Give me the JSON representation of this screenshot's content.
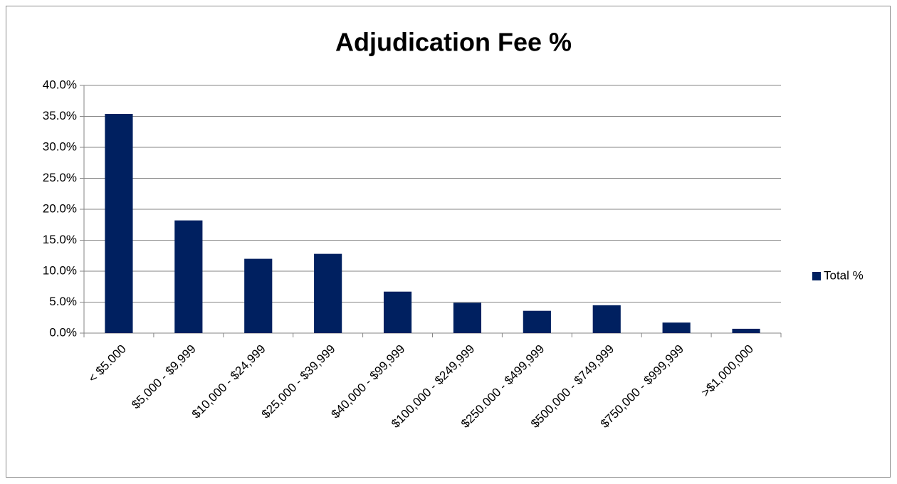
{
  "chart_data": {
    "type": "bar",
    "title": "Adjudication Fee %",
    "categories": [
      "< $5.000",
      "$5,000 - $9,999",
      "$10,000 - $24,999",
      "$25,000 - $39,999",
      "$40,000 - $99,999",
      "$100,000 - $249,999",
      "$250.000 - $499,999",
      "$500,000 - $749,999",
      "$750,000 - $999,999",
      ">$1,000,000"
    ],
    "series": [
      {
        "name": "Total %",
        "color": "#002060",
        "values": [
          35.4,
          18.2,
          12.0,
          12.8,
          6.7,
          4.9,
          3.6,
          4.5,
          1.7,
          0.7
        ]
      }
    ],
    "ylim": [
      0,
      40
    ],
    "yticks": [
      {
        "value": 0,
        "label": "0.0%"
      },
      {
        "value": 5,
        "label": "5.0%"
      },
      {
        "value": 10,
        "label": "10.0%"
      },
      {
        "value": 15,
        "label": "15.0%"
      },
      {
        "value": 20,
        "label": "20.0%"
      },
      {
        "value": 25,
        "label": "25.0%"
      },
      {
        "value": 30,
        "label": "30.0%"
      },
      {
        "value": 35,
        "label": "35.0%"
      },
      {
        "value": 40,
        "label": "40.0%"
      }
    ],
    "grid": true,
    "legend": "right"
  }
}
